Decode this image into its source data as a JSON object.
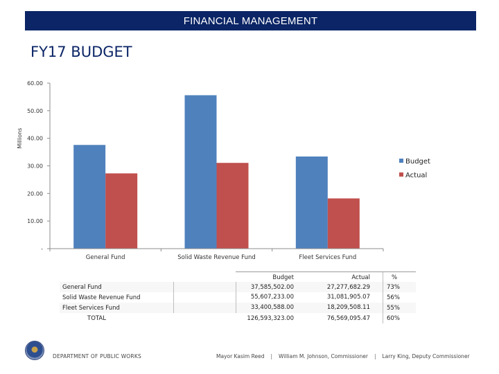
{
  "header": {
    "banner": "FINANCIAL MANAGEMENT",
    "title": "FY17 BUDGET"
  },
  "chart_data": {
    "type": "bar",
    "ylabel": "Millions",
    "ylim": [
      0,
      60
    ],
    "yticks": [
      0,
      10,
      20,
      30,
      40,
      50,
      60
    ],
    "ytick_labels": [
      "-",
      "10.00",
      "20.00",
      "30.00",
      "40.00",
      "50.00",
      "60.00"
    ],
    "categories": [
      "General Fund",
      "Solid Waste Revenue Fund",
      "Fleet Services Fund"
    ],
    "series": [
      {
        "name": "Budget",
        "color": "#4f81bd",
        "values": [
          37.59,
          55.61,
          33.4
        ]
      },
      {
        "name": "Actual",
        "color": "#c0504d",
        "values": [
          27.28,
          31.08,
          18.21
        ]
      }
    ],
    "legend": "right",
    "grid": false
  },
  "table": {
    "headers": {
      "budget": "Budget",
      "actual": "Actual",
      "pct": "%"
    },
    "rows": [
      {
        "name": "General Fund",
        "budget": "37,585,502.00",
        "actual": "27,277,682.29",
        "pct": "73%"
      },
      {
        "name": "Solid Waste Revenue Fund",
        "budget": "55,607,233.00",
        "actual": "31,081,905.07",
        "pct": "56%"
      },
      {
        "name": "Fleet Services Fund",
        "budget": "33,400,588.00",
        "actual": "18,209,508.11",
        "pct": "55%"
      }
    ],
    "total": {
      "name": "TOTAL",
      "budget": "126,593,323.00",
      "actual": "76,569,095.47",
      "pct": "60%"
    }
  },
  "footer": {
    "department": "DEPARTMENT OF PUBLIC WORKS",
    "mayor": "Mayor Kasim Reed",
    "commissioner": "William M. Johnson, Commissioner",
    "deputy": "Larry King, Deputy Commissioner",
    "separator": "|"
  }
}
